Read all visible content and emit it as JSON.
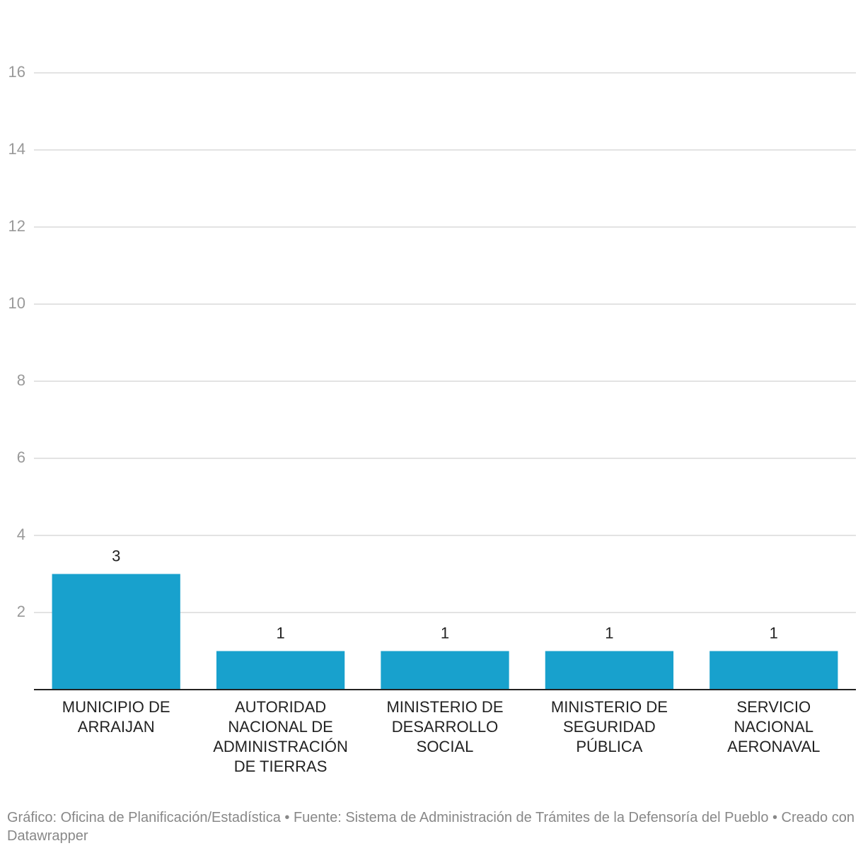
{
  "chart_data": {
    "type": "bar",
    "categories": [
      "MUNICIPIO DE ARRAIJAN",
      "AUTORIDAD NACIONAL DE ADMINISTRACIÓN DE TIERRAS",
      "MINISTERIO DE DESARROLLO SOCIAL",
      "MINISTERIO DE SEGURIDAD PÚBLICA",
      "SERVICIO NACIONAL AERONAVAL"
    ],
    "values": [
      3,
      1,
      1,
      1,
      1
    ],
    "color": "#18a1cd",
    "ylim": [
      0,
      16
    ],
    "yticks": [
      2,
      4,
      6,
      8,
      10,
      12,
      14,
      16
    ],
    "grid": true,
    "footer": "Gráfico: Oficina de Planificación/Estadística • Fuente: Sistema de Administración de Trámites de la Defensoría del Pueblo • Creado con Datawrapper"
  }
}
